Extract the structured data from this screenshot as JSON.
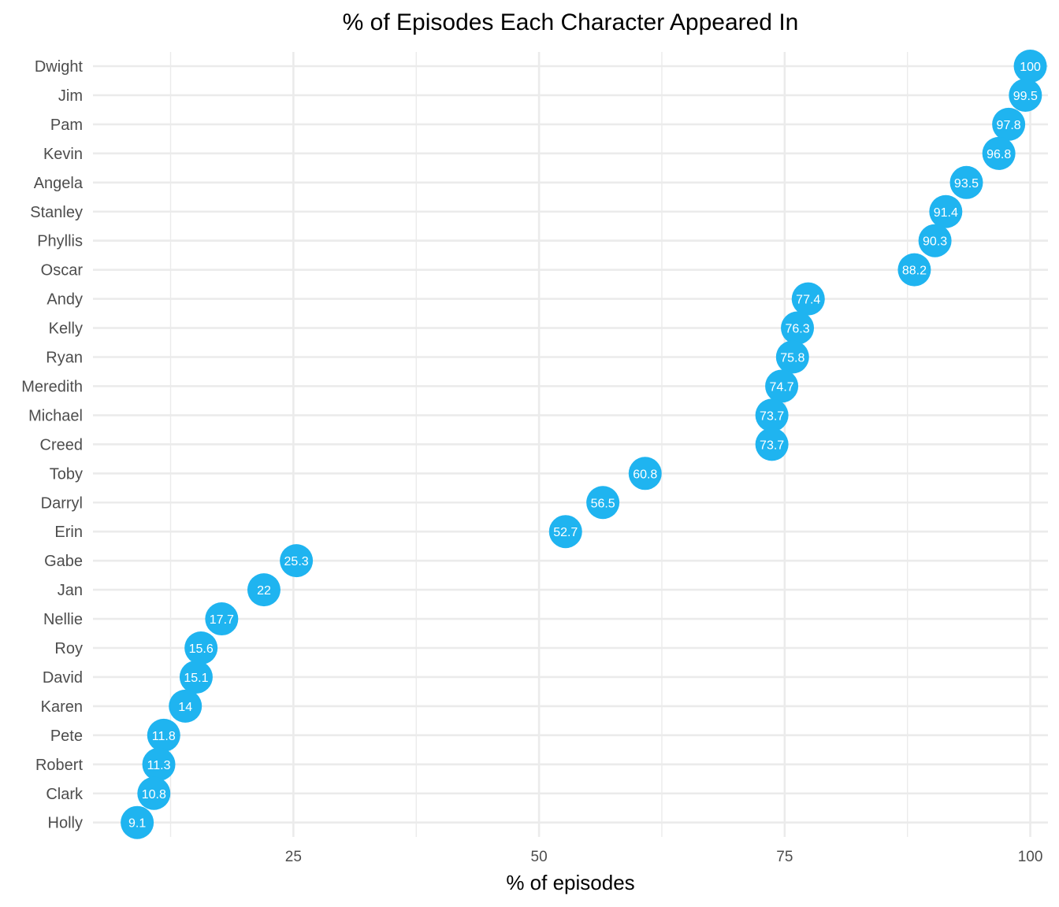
{
  "chart_data": {
    "type": "scatter",
    "title": "% of Episodes Each Character Appeared In",
    "xlabel": "% of episodes",
    "ylabel": "",
    "xlim": [
      4.6,
      101.8
    ],
    "x_ticks": [
      25,
      50,
      75,
      100
    ],
    "x_minor_ticks": [
      12.5,
      37.5,
      62.5,
      87.5
    ],
    "grid": true,
    "legend": "none",
    "point_color": "#1fb4f0",
    "label_color": "#ffffff",
    "grid_color": "#ebebeb",
    "categories": [
      "Dwight",
      "Jim",
      "Pam",
      "Kevin",
      "Angela",
      "Stanley",
      "Phyllis",
      "Oscar",
      "Andy",
      "Kelly",
      "Ryan",
      "Meredith",
      "Michael",
      "Creed",
      "Toby",
      "Darryl",
      "Erin",
      "Gabe",
      "Jan",
      "Nellie",
      "Roy",
      "David",
      "Karen",
      "Pete",
      "Robert",
      "Clark",
      "Holly"
    ],
    "values": [
      100,
      99.5,
      97.8,
      96.8,
      93.5,
      91.4,
      90.3,
      88.2,
      77.4,
      76.3,
      75.8,
      74.7,
      73.7,
      73.7,
      60.8,
      56.5,
      52.7,
      25.3,
      22,
      17.7,
      15.6,
      15.1,
      14,
      11.8,
      11.3,
      10.8,
      9.1
    ]
  }
}
